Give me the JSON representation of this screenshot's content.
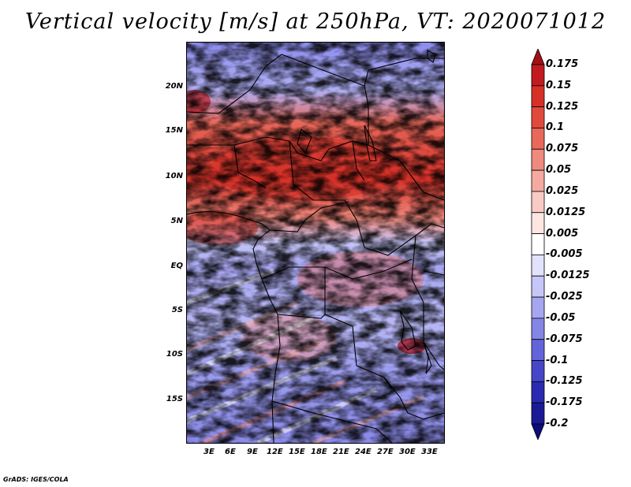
{
  "title": "Vertical velocity [m/s] at 250hPa, VT: 2020071012",
  "footer": "GrADS: IGES/COLA",
  "map": {
    "lat_labels": [
      "20N",
      "15N",
      "10N",
      "5N",
      "EQ",
      "5S",
      "10S",
      "15S"
    ],
    "lon_labels": [
      "3E",
      "6E",
      "9E",
      "12E",
      "15E",
      "18E",
      "21E",
      "24E",
      "27E",
      "30E",
      "33E"
    ],
    "lon_range": [
      0,
      35
    ],
    "lat_range": [
      -20,
      24.5
    ]
  },
  "colorbar": {
    "labels": [
      "0.175",
      "0.15",
      "0.125",
      "0.1",
      "0.075",
      "0.05",
      "0.025",
      "0.0125",
      "0.005",
      "-0.005",
      "-0.0125",
      "-0.025",
      "-0.05",
      "-0.075",
      "-0.1",
      "-0.125",
      "-0.175",
      "-0.2"
    ],
    "colors": [
      "#a50f15",
      "#c21a1e",
      "#d73027",
      "#e04a3c",
      "#e8685a",
      "#ef8a7e",
      "#f5aaa0",
      "#f9cbc4",
      "#fde6e2",
      "#ffffff",
      "#e2e2fc",
      "#c6c6f8",
      "#a6a6f0",
      "#8585e6",
      "#6464da",
      "#4646c8",
      "#2a2ab0",
      "#1a1a96",
      "#0c0c7a"
    ]
  }
}
